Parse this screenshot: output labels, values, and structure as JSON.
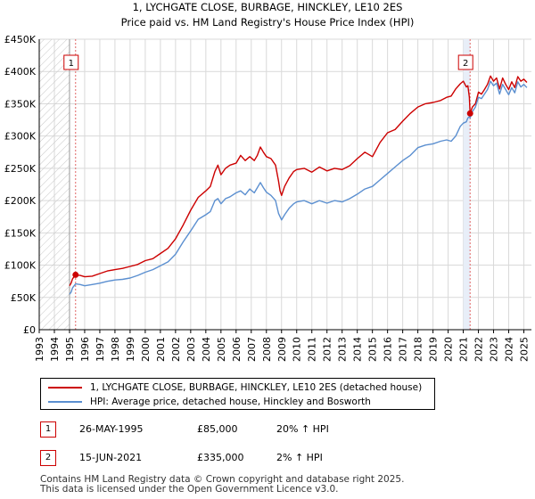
{
  "chart_data": {
    "type": "line",
    "title": "1, LYCHGATE CLOSE, BURBAGE, HINCKLEY, LE10 2ES",
    "subtitle": "Price paid vs. HM Land Registry's House Price Index (HPI)",
    "xlabel": "",
    "ylabel": "",
    "xlim": [
      1993,
      2025.5
    ],
    "ylim": [
      0,
      450000
    ],
    "grid": true,
    "y_ticks": [
      {
        "value": 0,
        "label": "£0"
      },
      {
        "value": 50000,
        "label": "£50K"
      },
      {
        "value": 100000,
        "label": "£100K"
      },
      {
        "value": 150000,
        "label": "£150K"
      },
      {
        "value": 200000,
        "label": "£200K"
      },
      {
        "value": 250000,
        "label": "£250K"
      },
      {
        "value": 300000,
        "label": "£300K"
      },
      {
        "value": 350000,
        "label": "£350K"
      },
      {
        "value": 400000,
        "label": "£400K"
      },
      {
        "value": 450000,
        "label": "£450K"
      }
    ],
    "x_ticks": [
      "1993",
      "1994",
      "1995",
      "1996",
      "1997",
      "1998",
      "1999",
      "2000",
      "2001",
      "2002",
      "2003",
      "2004",
      "2005",
      "2006",
      "2007",
      "2008",
      "2009",
      "2010",
      "2011",
      "2012",
      "2013",
      "2014",
      "2015",
      "2016",
      "2017",
      "2018",
      "2019",
      "2020",
      "2021",
      "2022",
      "2023",
      "2024",
      "2025"
    ],
    "hatched_region": {
      "from": 1993,
      "to": 1995.0
    },
    "shaded_region": {
      "from": 2021.0,
      "to": 2021.45
    },
    "series": [
      {
        "name": "1, LYCHGATE CLOSE, BURBAGE, HINCKLEY, LE10 2ES (detached house)",
        "color": "#cc0000",
        "points": [
          [
            1995.0,
            68000
          ],
          [
            1995.1,
            72000
          ],
          [
            1995.2,
            79000
          ],
          [
            1995.4,
            85000
          ],
          [
            1995.7,
            84000
          ],
          [
            1996.0,
            82000
          ],
          [
            1996.5,
            83000
          ],
          [
            1997.0,
            87000
          ],
          [
            1997.5,
            91000
          ],
          [
            1998.0,
            93000
          ],
          [
            1998.5,
            95000
          ],
          [
            1999.0,
            98000
          ],
          [
            1999.5,
            101000
          ],
          [
            2000.0,
            107000
          ],
          [
            2000.5,
            110000
          ],
          [
            2001.0,
            118000
          ],
          [
            2001.5,
            126000
          ],
          [
            2002.0,
            141000
          ],
          [
            2002.5,
            162000
          ],
          [
            2003.0,
            185000
          ],
          [
            2003.5,
            205000
          ],
          [
            2004.0,
            215000
          ],
          [
            2004.3,
            222000
          ],
          [
            2004.6,
            245000
          ],
          [
            2004.8,
            255000
          ],
          [
            2005.0,
            240000
          ],
          [
            2005.3,
            250000
          ],
          [
            2005.6,
            255000
          ],
          [
            2006.0,
            258000
          ],
          [
            2006.3,
            270000
          ],
          [
            2006.6,
            262000
          ],
          [
            2006.9,
            268000
          ],
          [
            2007.2,
            262000
          ],
          [
            2007.4,
            270000
          ],
          [
            2007.6,
            283000
          ],
          [
            2007.8,
            275000
          ],
          [
            2008.0,
            268000
          ],
          [
            2008.3,
            265000
          ],
          [
            2008.6,
            255000
          ],
          [
            2008.8,
            230000
          ],
          [
            2008.9,
            215000
          ],
          [
            2009.0,
            208000
          ],
          [
            2009.2,
            222000
          ],
          [
            2009.5,
            235000
          ],
          [
            2009.8,
            245000
          ],
          [
            2010.0,
            248000
          ],
          [
            2010.5,
            250000
          ],
          [
            2011.0,
            244000
          ],
          [
            2011.5,
            252000
          ],
          [
            2012.0,
            246000
          ],
          [
            2012.5,
            250000
          ],
          [
            2013.0,
            248000
          ],
          [
            2013.5,
            254000
          ],
          [
            2014.0,
            265000
          ],
          [
            2014.5,
            275000
          ],
          [
            2015.0,
            268000
          ],
          [
            2015.5,
            290000
          ],
          [
            2016.0,
            305000
          ],
          [
            2016.5,
            310000
          ],
          [
            2017.0,
            323000
          ],
          [
            2017.5,
            335000
          ],
          [
            2018.0,
            345000
          ],
          [
            2018.5,
            350000
          ],
          [
            2019.0,
            352000
          ],
          [
            2019.5,
            355000
          ],
          [
            2019.9,
            360000
          ],
          [
            2020.2,
            362000
          ],
          [
            2020.5,
            373000
          ],
          [
            2020.8,
            381000
          ],
          [
            2021.0,
            385000
          ],
          [
            2021.2,
            376000
          ],
          [
            2021.3,
            378000
          ],
          [
            2021.4,
            360000
          ],
          [
            2021.45,
            335000
          ],
          [
            2021.6,
            345000
          ],
          [
            2021.8,
            350000
          ],
          [
            2022.0,
            368000
          ],
          [
            2022.2,
            365000
          ],
          [
            2022.4,
            372000
          ],
          [
            2022.6,
            380000
          ],
          [
            2022.8,
            393000
          ],
          [
            2023.0,
            385000
          ],
          [
            2023.2,
            390000
          ],
          [
            2023.4,
            373000
          ],
          [
            2023.6,
            390000
          ],
          [
            2023.8,
            380000
          ],
          [
            2024.0,
            372000
          ],
          [
            2024.2,
            384000
          ],
          [
            2024.4,
            375000
          ],
          [
            2024.6,
            392000
          ],
          [
            2024.8,
            385000
          ],
          [
            2025.0,
            388000
          ],
          [
            2025.2,
            383000
          ]
        ]
      },
      {
        "name": "HPI: Average price, detached house, Hinckley and Bosworth",
        "color": "#5b8fd0",
        "points": [
          [
            1995.0,
            55000
          ],
          [
            1995.1,
            58000
          ],
          [
            1995.2,
            65000
          ],
          [
            1995.4,
            71000
          ],
          [
            1995.7,
            70000
          ],
          [
            1996.0,
            68000
          ],
          [
            1996.5,
            70000
          ],
          [
            1997.0,
            72000
          ],
          [
            1997.5,
            75000
          ],
          [
            1998.0,
            77000
          ],
          [
            1998.5,
            78000
          ],
          [
            1999.0,
            80000
          ],
          [
            1999.5,
            84000
          ],
          [
            2000.0,
            89000
          ],
          [
            2000.5,
            93000
          ],
          [
            2001.0,
            99000
          ],
          [
            2001.5,
            105000
          ],
          [
            2002.0,
            117000
          ],
          [
            2002.5,
            136000
          ],
          [
            2003.0,
            153000
          ],
          [
            2003.5,
            171000
          ],
          [
            2004.0,
            178000
          ],
          [
            2004.3,
            183000
          ],
          [
            2004.6,
            200000
          ],
          [
            2004.8,
            203000
          ],
          [
            2005.0,
            195000
          ],
          [
            2005.3,
            203000
          ],
          [
            2005.6,
            206000
          ],
          [
            2006.0,
            212000
          ],
          [
            2006.3,
            215000
          ],
          [
            2006.6,
            209000
          ],
          [
            2006.9,
            218000
          ],
          [
            2007.2,
            212000
          ],
          [
            2007.4,
            220000
          ],
          [
            2007.6,
            228000
          ],
          [
            2007.8,
            220000
          ],
          [
            2008.0,
            213000
          ],
          [
            2008.3,
            208000
          ],
          [
            2008.6,
            200000
          ],
          [
            2008.8,
            180000
          ],
          [
            2008.9,
            175000
          ],
          [
            2009.0,
            170000
          ],
          [
            2009.2,
            178000
          ],
          [
            2009.5,
            188000
          ],
          [
            2009.8,
            195000
          ],
          [
            2010.0,
            198000
          ],
          [
            2010.5,
            200000
          ],
          [
            2011.0,
            195000
          ],
          [
            2011.5,
            200000
          ],
          [
            2012.0,
            196000
          ],
          [
            2012.5,
            200000
          ],
          [
            2013.0,
            198000
          ],
          [
            2013.5,
            203000
          ],
          [
            2014.0,
            210000
          ],
          [
            2014.5,
            218000
          ],
          [
            2015.0,
            222000
          ],
          [
            2015.5,
            232000
          ],
          [
            2016.0,
            242000
          ],
          [
            2016.5,
            252000
          ],
          [
            2017.0,
            262000
          ],
          [
            2017.5,
            270000
          ],
          [
            2018.0,
            282000
          ],
          [
            2018.5,
            286000
          ],
          [
            2019.0,
            288000
          ],
          [
            2019.5,
            292000
          ],
          [
            2019.9,
            294000
          ],
          [
            2020.2,
            292000
          ],
          [
            2020.5,
            300000
          ],
          [
            2020.8,
            315000
          ],
          [
            2021.0,
            320000
          ],
          [
            2021.2,
            322000
          ],
          [
            2021.3,
            328000
          ],
          [
            2021.4,
            330000
          ],
          [
            2021.45,
            328000
          ],
          [
            2021.6,
            338000
          ],
          [
            2021.8,
            345000
          ],
          [
            2022.0,
            360000
          ],
          [
            2022.2,
            358000
          ],
          [
            2022.4,
            365000
          ],
          [
            2022.6,
            372000
          ],
          [
            2022.8,
            385000
          ],
          [
            2023.0,
            378000
          ],
          [
            2023.2,
            382000
          ],
          [
            2023.4,
            365000
          ],
          [
            2023.6,
            380000
          ],
          [
            2023.8,
            372000
          ],
          [
            2024.0,
            364000
          ],
          [
            2024.2,
            375000
          ],
          [
            2024.4,
            367000
          ],
          [
            2024.6,
            384000
          ],
          [
            2024.8,
            376000
          ],
          [
            2025.0,
            380000
          ],
          [
            2025.2,
            375000
          ]
        ]
      }
    ],
    "sales": [
      {
        "label": "1",
        "x": 1995.4,
        "price": 85000,
        "date": "26-MAY-1995",
        "price_text": "£85,000",
        "hpi_text": "20% ↑ HPI"
      },
      {
        "label": "2",
        "x": 2021.45,
        "price": 335000,
        "date": "15-JUN-2021",
        "price_text": "£335,000",
        "hpi_text": "2% ↑ HPI"
      }
    ]
  },
  "footer": {
    "line1": "Contains HM Land Registry data © Crown copyright and database right 2025.",
    "line2": "This data is licensed under the Open Government Licence v3.0."
  }
}
